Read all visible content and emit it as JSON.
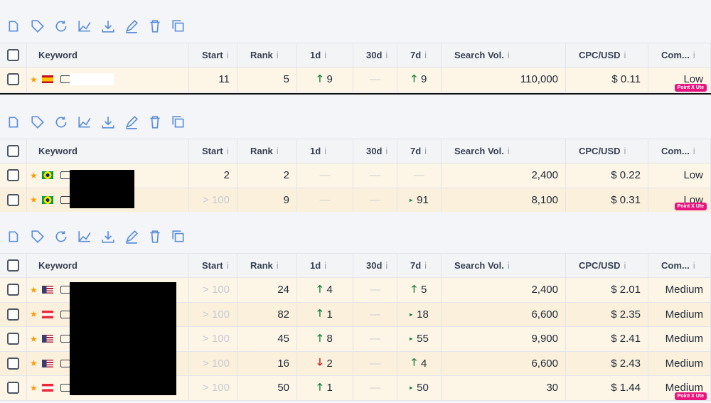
{
  "info_mark": "i",
  "watermark": "Point X Ute",
  "headers": [
    "Keyword",
    "Start",
    "Rank",
    "1d",
    "30d",
    "7d",
    "Search Vol.",
    "CPC/USD",
    "Com..."
  ],
  "panels": [
    {
      "rows": [
        {
          "flag": "es",
          "start": "11",
          "rank": "5",
          "d1": {
            "dir": "up",
            "value": "9"
          },
          "d30": "—",
          "d7": {
            "dir": "up",
            "value": "9"
          },
          "vol": "110,000",
          "cpc": "$ 0.11",
          "com": "Low"
        }
      ]
    },
    {
      "rows": [
        {
          "flag": "br",
          "start": "2",
          "rank": "2",
          "d1": "—",
          "d30": "—",
          "d7": "—",
          "vol": "2,400",
          "cpc": "$ 0.22",
          "com": "Low"
        },
        {
          "flag": "br",
          "start": "> 100",
          "rank": "9",
          "d1": "—",
          "d30": "—",
          "d7": {
            "dir": "small",
            "value": "91"
          },
          "vol": "8,100",
          "cpc": "$ 0.31",
          "com": "Low"
        }
      ]
    },
    {
      "rows": [
        {
          "flag": "us",
          "start": "> 100",
          "rank": "24",
          "d1": {
            "dir": "up",
            "value": "4"
          },
          "d30": "—",
          "d7": {
            "dir": "up",
            "value": "5"
          },
          "vol": "2,400",
          "cpc": "$ 2.01",
          "com": "Medium"
        },
        {
          "flag": "at",
          "start": "> 100",
          "rank": "82",
          "d1": {
            "dir": "up",
            "value": "1"
          },
          "d30": "—",
          "d7": {
            "dir": "small",
            "value": "18"
          },
          "vol": "6,600",
          "cpc": "$ 2.35",
          "com": "Medium"
        },
        {
          "flag": "us",
          "start": "> 100",
          "rank": "45",
          "d1": {
            "dir": "up",
            "value": "8"
          },
          "d30": "—",
          "d7": {
            "dir": "small",
            "value": "55"
          },
          "vol": "9,900",
          "cpc": "$ 2.41",
          "com": "Medium"
        },
        {
          "flag": "us",
          "start": "> 100",
          "rank": "16",
          "d1": {
            "dir": "down",
            "value": "2"
          },
          "d30": "—",
          "d7": {
            "dir": "up",
            "value": "4"
          },
          "vol": "6,600",
          "cpc": "$ 2.43",
          "com": "Medium"
        },
        {
          "flag": "at",
          "start": "> 100",
          "rank": "50",
          "d1": {
            "dir": "up",
            "value": "1"
          },
          "d30": "—",
          "d7": {
            "dir": "small",
            "value": "50"
          },
          "vol": "30",
          "cpc": "$ 1.44",
          "com": "Medium"
        }
      ]
    }
  ]
}
